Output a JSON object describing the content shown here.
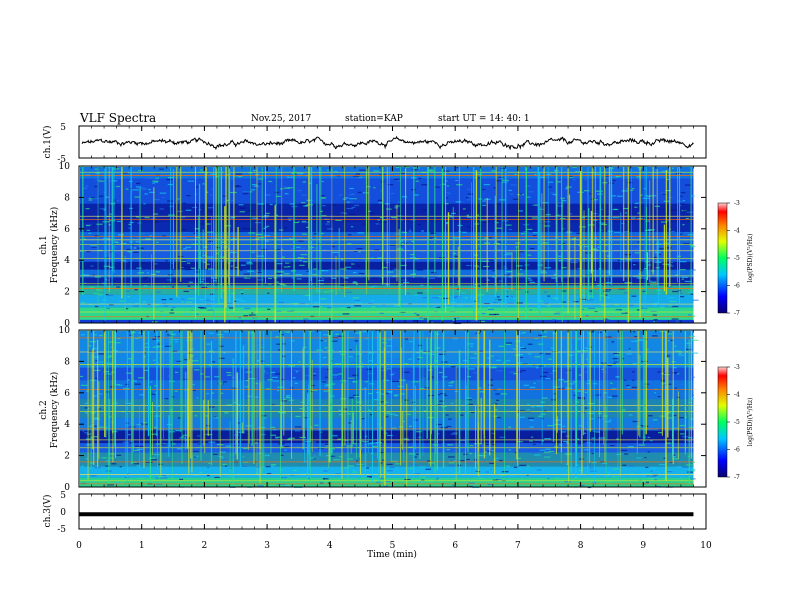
{
  "header": {
    "title": "VLF Spectra",
    "date": "Nov.25, 2017",
    "station": "station=KAP",
    "start": "start UT = 14: 40: 1"
  },
  "chart_data": [
    {
      "type": "line",
      "panel": "ch1-waveform",
      "ylabel": "ch.1(V)",
      "ylim": [
        -5,
        5
      ],
      "yticks": [
        "5",
        "-5"
      ],
      "xlim": [
        0,
        10
      ],
      "color": "#000000"
    },
    {
      "type": "heatmap",
      "panel": "ch1-spectrogram",
      "ylabel_top": "ch.1",
      "ylabel": "Frequency (kHz)",
      "ylim": [
        0,
        10
      ],
      "yticks": [
        "0",
        "2",
        "4",
        "6",
        "8",
        "10"
      ],
      "xlim": [
        0,
        9.8
      ],
      "colorbar": {
        "label": "log(PSD)(V²/Hz)",
        "range": [
          -7,
          -3
        ],
        "ticks": [
          "-3",
          "-4",
          "-5",
          "-6",
          "-7"
        ]
      }
    },
    {
      "type": "heatmap",
      "panel": "ch2-spectrogram",
      "ylabel_top": "ch.2",
      "ylabel": "Frequency (kHz)",
      "ylim": [
        0,
        10
      ],
      "yticks": [
        "0",
        "2",
        "4",
        "6",
        "8",
        "10"
      ],
      "xlim": [
        0,
        9.8
      ],
      "colorbar": {
        "label": "log(PSD)(V²/Hz)",
        "range": [
          -7,
          -3
        ],
        "ticks": [
          "-3",
          "-4",
          "-5",
          "-6",
          "-7"
        ]
      }
    },
    {
      "type": "line",
      "panel": "ch3-waveform",
      "ylabel": "ch.3(V)",
      "ylim": [
        -5,
        5
      ],
      "yticks": [
        "5",
        "0",
        "-5"
      ],
      "xlim": [
        0,
        10
      ],
      "constant_value": -0.8,
      "color": "#000000"
    }
  ],
  "xaxis": {
    "label": "Time (min)",
    "ticks": [
      "0",
      "1",
      "2",
      "3",
      "4",
      "5",
      "6",
      "7",
      "8",
      "9",
      "10"
    ],
    "range": [
      0,
      10
    ]
  },
  "colors": {
    "spectro_bg": "#0f3bd6",
    "spectro_dark": "#07168a",
    "spectro_green": "#2fe08a",
    "spectro_cyan": "#16c8f0",
    "spectro_yellow": "#c9e62a"
  }
}
